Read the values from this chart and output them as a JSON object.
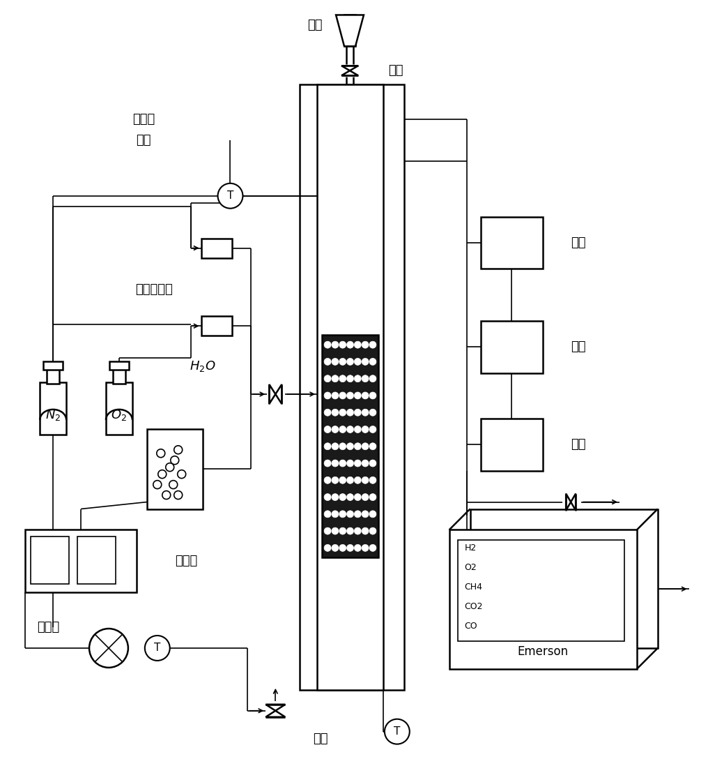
{
  "bg_color": "#ffffff",
  "line_color": "#000000",
  "labels": {
    "silo": "料仓",
    "valve_top": "阀门",
    "thermocouple": "热电偶\n温控",
    "mass_flow": "质量流量计",
    "N2": "$N_2$",
    "O2": "$O_2$",
    "H2O": "$H_2O$",
    "constant_pump": "恒流泵",
    "heating": "加热带",
    "inlet": "入口",
    "filter": "过滤",
    "cooling": "冷却",
    "drying": "干燥",
    "emerson": "Emerson",
    "gases": [
      "CO",
      "CO2",
      "CH4",
      "O2",
      "H2"
    ]
  }
}
